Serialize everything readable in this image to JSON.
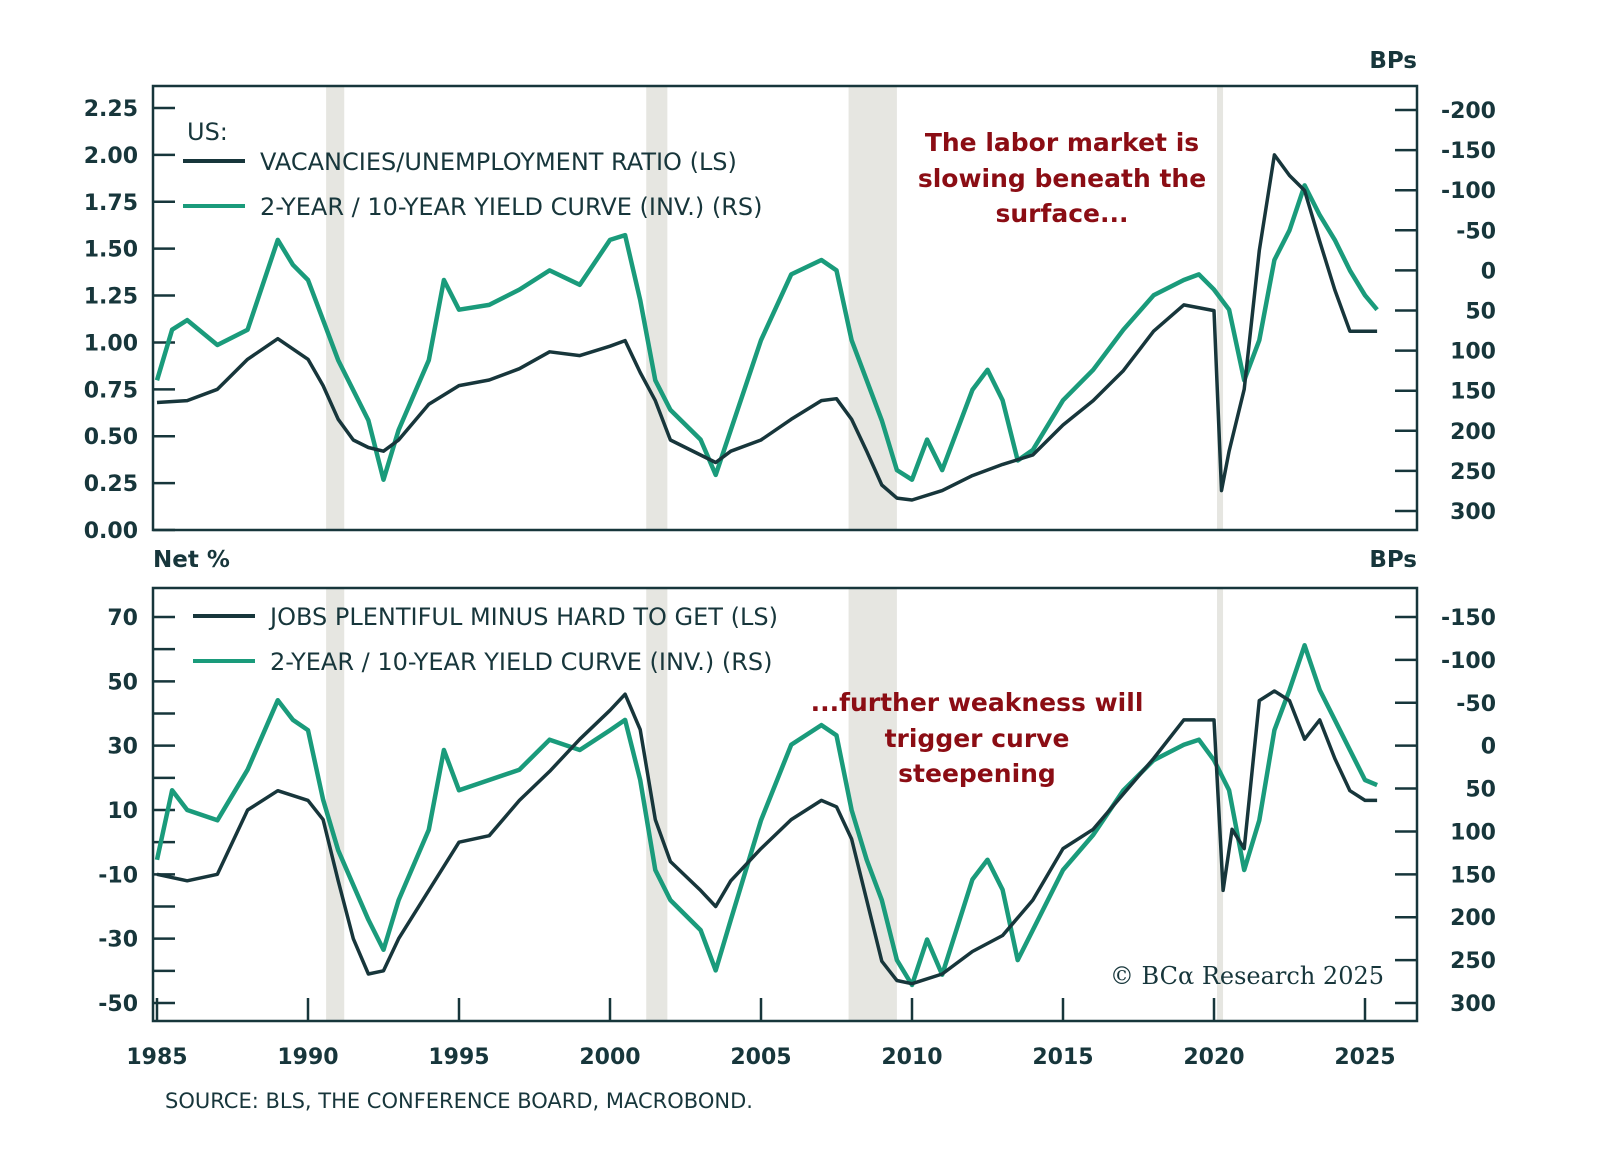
{
  "colors": {
    "dark_series": "#17363b",
    "green_series": "#1a9b7b",
    "annotation": "#8b0d14",
    "recession": "#e6e6e1",
    "axis": "#17363b"
  },
  "chart_data": [
    {
      "type": "line",
      "panel": "top",
      "legend_title": "US:",
      "left_unit": "",
      "right_unit": "BPs",
      "xlim": [
        1985,
        2026.5
      ],
      "x_ticks": [
        1985,
        1990,
        1995,
        2000,
        2005,
        2010,
        2015,
        2020,
        2025
      ],
      "left_ylim": [
        0,
        2.35
      ],
      "left_ticks": [
        "0.00",
        "0.25",
        "0.50",
        "0.75",
        "1.00",
        "1.25",
        "1.50",
        "1.75",
        "2.00",
        "2.25"
      ],
      "left_tick_values": [
        0,
        0.25,
        0.5,
        0.75,
        1.0,
        1.25,
        1.5,
        1.75,
        2.0,
        2.25
      ],
      "right_ylim": [
        -225,
        325
      ],
      "right_inverted": true,
      "right_ticks": [
        "-200",
        "-150",
        "-100",
        "-50",
        "0",
        "50",
        "100",
        "150",
        "200",
        "250",
        "300"
      ],
      "right_tick_values": [
        -200,
        -150,
        -100,
        -50,
        0,
        50,
        100,
        150,
        200,
        250,
        300
      ],
      "annotation": [
        "The labor market is",
        "slowing beneath the",
        "surface..."
      ],
      "recessions": [
        [
          1990.6,
          1991.2
        ],
        [
          2001.2,
          2001.9
        ],
        [
          2007.9,
          2009.5
        ],
        [
          2020.1,
          2020.3
        ]
      ],
      "series": [
        {
          "name": "VACANCIES/UNEMPLOYMENT RATIO (LS)",
          "axis": "left",
          "color_key": "dark_series",
          "x": [
            1985,
            1986,
            1987,
            1988,
            1989,
            1990,
            1990.5,
            1991,
            1991.5,
            1992,
            1992.5,
            1993,
            1994,
            1995,
            1996,
            1997,
            1998,
            1999,
            2000,
            2000.5,
            2001,
            2001.5,
            2002,
            2003,
            2003.5,
            2004,
            2005,
            2006,
            2007,
            2007.5,
            2008,
            2008.5,
            2009,
            2009.5,
            2010,
            2011,
            2012,
            2013,
            2014,
            2015,
            2016,
            2017,
            2018,
            2019,
            2020,
            2020.25,
            2020.5,
            2021,
            2021.5,
            2022,
            2022.5,
            2023,
            2023.5,
            2024,
            2024.5,
            2025,
            2025.4
          ],
          "y": [
            0.68,
            0.69,
            0.75,
            0.91,
            1.02,
            0.91,
            0.77,
            0.59,
            0.48,
            0.44,
            0.42,
            0.48,
            0.67,
            0.77,
            0.8,
            0.86,
            0.95,
            0.93,
            0.98,
            1.01,
            0.84,
            0.69,
            0.48,
            0.4,
            0.36,
            0.42,
            0.48,
            0.59,
            0.69,
            0.7,
            0.59,
            0.42,
            0.24,
            0.17,
            0.16,
            0.21,
            0.29,
            0.35,
            0.4,
            0.56,
            0.69,
            0.85,
            1.06,
            1.2,
            1.17,
            0.21,
            0.42,
            0.75,
            1.49,
            2.0,
            1.89,
            1.81,
            1.54,
            1.28,
            1.06,
            1.06,
            1.06
          ]
        },
        {
          "name": "2-YEAR / 10-YEAR YIELD CURVE (INV.) (RS)",
          "axis": "right",
          "color_key": "green_series",
          "x": [
            1985,
            1985.5,
            1986,
            1987,
            1988,
            1989,
            1989.5,
            1990,
            1990.5,
            1991,
            1992,
            1992.5,
            1993,
            1994,
            1994.5,
            1995,
            1996,
            1997,
            1998,
            1999,
            2000,
            2000.5,
            2001,
            2001.5,
            2002,
            2003,
            2003.5,
            2004,
            2005,
            2006,
            2007,
            2007.5,
            2008,
            2008.5,
            2009,
            2009.5,
            2010,
            2010.5,
            2011,
            2012,
            2012.5,
            2013,
            2013.5,
            2014,
            2015,
            2016,
            2017,
            2018,
            2019,
            2019.5,
            2020,
            2020.5,
            2021,
            2021.5,
            2022,
            2022.5,
            2023,
            2023.5,
            2024,
            2024.5,
            2025,
            2025.4
          ],
          "y": [
            137,
            74,
            62,
            93,
            74,
            -38,
            -7,
            12,
            62,
            112,
            187,
            261,
            199,
            112,
            12,
            49,
            43,
            24,
            0,
            18,
            -38,
            -44,
            37,
            137,
            174,
            211,
            255,
            199,
            87,
            5,
            -13,
            0,
            87,
            137,
            187,
            249,
            261,
            211,
            249,
            149,
            124,
            162,
            237,
            224,
            162,
            124,
            74,
            31,
            12,
            5,
            24,
            49,
            137,
            87,
            -13,
            -50,
            -106,
            -69,
            -38,
            0,
            31,
            49
          ]
        }
      ]
    },
    {
      "type": "line",
      "panel": "bottom",
      "left_unit": "Net %",
      "right_unit": "BPs",
      "xlim": [
        1985,
        2026.5
      ],
      "x_ticks": [
        1985,
        1990,
        1995,
        2000,
        2005,
        2010,
        2015,
        2020,
        2025
      ],
      "left_ylim": [
        -55,
        77
      ],
      "left_ticks": [
        "-50",
        "-30",
        "-10",
        "10",
        "30",
        "50",
        "70"
      ],
      "left_tick_values": [
        -50,
        -30,
        -10,
        10,
        30,
        50,
        70
      ],
      "left_minor_tick_values": [
        -40,
        -20,
        0,
        20,
        40,
        60
      ],
      "right_ylim": [
        -175,
        320
      ],
      "right_inverted": true,
      "right_ticks": [
        "-150",
        "-100",
        "-50",
        "0",
        "50",
        "100",
        "150",
        "200",
        "250",
        "300"
      ],
      "right_tick_values": [
        -150,
        -100,
        -50,
        0,
        50,
        100,
        150,
        200,
        250,
        300
      ],
      "annotation": [
        "...further weakness will",
        "trigger curve",
        "steepening"
      ],
      "recessions": [
        [
          1990.6,
          1991.2
        ],
        [
          2001.2,
          2001.9
        ],
        [
          2007.9,
          2009.5
        ],
        [
          2020.1,
          2020.3
        ]
      ],
      "series": [
        {
          "name": "JOBS PLENTIFUL MINUS HARD TO GET (LS)",
          "axis": "left",
          "color_key": "dark_series",
          "x": [
            1985,
            1986,
            1987,
            1988,
            1989,
            1990,
            1990.5,
            1991,
            1991.5,
            1992,
            1992.5,
            1993,
            1994,
            1995,
            1996,
            1997,
            1998,
            1999,
            2000,
            2000.5,
            2001,
            2001.5,
            2002,
            2003,
            2003.5,
            2004,
            2005,
            2006,
            2007,
            2007.5,
            2008,
            2008.5,
            2009,
            2009.5,
            2010,
            2011,
            2012,
            2013,
            2014,
            2015,
            2016,
            2017,
            2018,
            2019,
            2020,
            2020.3,
            2020.6,
            2021,
            2021.5,
            2022,
            2022.5,
            2023,
            2023.5,
            2024,
            2024.5,
            2025,
            2025.4
          ],
          "y": [
            -10,
            -12,
            -10,
            10,
            16,
            13,
            7,
            -12,
            -30,
            -41,
            -40,
            -30,
            -15,
            0,
            2,
            13,
            22,
            32,
            41,
            46,
            35,
            7,
            -6,
            -15,
            -20,
            -12,
            -2,
            7,
            13,
            11,
            1,
            -18,
            -37,
            -43,
            -44,
            -41,
            -34,
            -29,
            -18,
            -2,
            4,
            15,
            26,
            38,
            38,
            -15,
            4,
            -2,
            44,
            47,
            44,
            32,
            38,
            26,
            16,
            13,
            13
          ]
        },
        {
          "name": "2-YEAR / 10-YEAR YIELD CURVE (INV.) (RS)",
          "axis": "right",
          "color_key": "green_series",
          "x": [
            1985,
            1985.5,
            1986,
            1987,
            1988,
            1989,
            1989.5,
            1990,
            1990.5,
            1991,
            1992,
            1992.5,
            1993,
            1994,
            1994.5,
            1995,
            1996,
            1997,
            1998,
            1999,
            2000,
            2000.5,
            2001,
            2001.5,
            2002,
            2003,
            2003.5,
            2004,
            2005,
            2006,
            2007,
            2007.5,
            2008,
            2008.5,
            2009,
            2009.5,
            2010,
            2010.5,
            2011,
            2012,
            2012.5,
            2013,
            2013.5,
            2014,
            2015,
            2016,
            2017,
            2018,
            2019,
            2019.5,
            2020,
            2020.5,
            2021,
            2021.5,
            2022,
            2022.5,
            2023,
            2023.5,
            2024,
            2024.5,
            2025,
            2025.4
          ],
          "y": [
            133,
            52,
            75,
            87,
            28,
            -53,
            -30,
            -18,
            63,
            122,
            203,
            238,
            180,
            98,
            5,
            52,
            40,
            28,
            -7,
            5,
            -18,
            -30,
            40,
            145,
            180,
            215,
            262,
            203,
            87,
            -1,
            -24,
            -12,
            75,
            133,
            180,
            250,
            279,
            226,
            267,
            156,
            133,
            168,
            250,
            215,
            145,
            104,
            52,
            17,
            -1,
            -7,
            17,
            52,
            145,
            87,
            -18,
            -65,
            -117,
            -65,
            -30,
            5,
            40,
            46
          ]
        }
      ]
    }
  ],
  "footer": {
    "source": "SOURCE: BLS, THE CONFERENCE BOARD, MACROBOND.",
    "copyright": "© BCα Research 2025"
  }
}
